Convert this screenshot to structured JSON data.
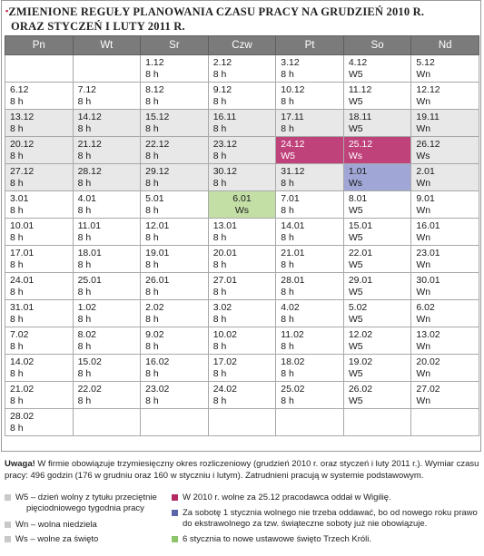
{
  "title": {
    "line1": "ZMIENIONE REGUŁY PLANOWANIA CZASU PRACY NA GRUDZIEŃ 2010 R.",
    "line2": "ORAZ STYCZEŃ I LUTY 2011 R."
  },
  "headers": [
    "Pn",
    "Wt",
    "Sr",
    "Czw",
    "Pt",
    "So",
    "Nd"
  ],
  "rows": [
    {
      "shade": false,
      "cells": [
        null,
        null,
        {
          "d": "1.12",
          "v": "8 h"
        },
        {
          "d": "2.12",
          "v": "8 h"
        },
        {
          "d": "3.12",
          "v": "8 h"
        },
        {
          "d": "4.12",
          "v": "W5"
        },
        {
          "d": "5.12",
          "v": "Wn"
        }
      ]
    },
    {
      "shade": false,
      "cells": [
        {
          "d": "6.12",
          "v": "8 h"
        },
        {
          "d": "7.12",
          "v": "8 h"
        },
        {
          "d": "8.12",
          "v": "8 h"
        },
        {
          "d": "9.12",
          "v": "8 h"
        },
        {
          "d": "10.12",
          "v": "8 h"
        },
        {
          "d": "11.12",
          "v": "W5"
        },
        {
          "d": "12.12",
          "v": "Wn"
        }
      ]
    },
    {
      "shade": true,
      "cells": [
        {
          "d": "13.12",
          "v": "8 h"
        },
        {
          "d": "14.12",
          "v": "8 h"
        },
        {
          "d": "15.12",
          "v": "8 h"
        },
        {
          "d": "16.11",
          "v": "8 h"
        },
        {
          "d": "17.11",
          "v": "8 h"
        },
        {
          "d": "18.11",
          "v": "W5"
        },
        {
          "d": "19.11",
          "v": "Wn"
        }
      ]
    },
    {
      "shade": true,
      "cells": [
        {
          "d": "20.12",
          "v": "8 h"
        },
        {
          "d": "21.12",
          "v": "8 h"
        },
        {
          "d": "22.12",
          "v": "8 h"
        },
        {
          "d": "23.12",
          "v": "8 h"
        },
        {
          "d": "24.12",
          "v": "W5",
          "hl": "pink"
        },
        {
          "d": "25.12",
          "v": "Ws",
          "hl": "pink"
        },
        {
          "d": "26.12",
          "v": "Ws"
        }
      ]
    },
    {
      "shade": true,
      "cells": [
        {
          "d": "27.12",
          "v": "8 h"
        },
        {
          "d": "28.12",
          "v": "8 h"
        },
        {
          "d": "29.12",
          "v": "8 h"
        },
        {
          "d": "30.12",
          "v": "8 h"
        },
        {
          "d": "31.12",
          "v": "8 h"
        },
        {
          "d": "1.01",
          "v": "Ws",
          "hl": "blue"
        },
        {
          "d": "2.01",
          "v": "Wn"
        }
      ]
    },
    {
      "shade": false,
      "cells": [
        {
          "d": "3.01",
          "v": "8 h"
        },
        {
          "d": "4.01",
          "v": "8 h"
        },
        {
          "d": "5.01",
          "v": "8 h"
        },
        {
          "d": "6.01",
          "v": "Ws",
          "hl": "green"
        },
        {
          "d": "7.01",
          "v": "8 h"
        },
        {
          "d": "8.01",
          "v": "W5"
        },
        {
          "d": "9.01",
          "v": "Wn"
        }
      ]
    },
    {
      "shade": false,
      "cells": [
        {
          "d": "10.01",
          "v": "8 h"
        },
        {
          "d": "11.01",
          "v": "8 h"
        },
        {
          "d": "12.01",
          "v": "8 h"
        },
        {
          "d": "13.01",
          "v": "8 h"
        },
        {
          "d": "14.01",
          "v": "8 h"
        },
        {
          "d": "15.01",
          "v": "W5"
        },
        {
          "d": "16.01",
          "v": "Wn"
        }
      ]
    },
    {
      "shade": false,
      "cells": [
        {
          "d": "17.01",
          "v": "8 h"
        },
        {
          "d": "18.01",
          "v": "8 h"
        },
        {
          "d": "19.01",
          "v": "8 h"
        },
        {
          "d": "20.01",
          "v": "8 h"
        },
        {
          "d": "21.01",
          "v": "8 h"
        },
        {
          "d": "22.01",
          "v": "W5"
        },
        {
          "d": "23.01",
          "v": "Wn"
        }
      ]
    },
    {
      "shade": false,
      "cells": [
        {
          "d": "24.01",
          "v": "8 h"
        },
        {
          "d": "25.01",
          "v": "8 h"
        },
        {
          "d": "26.01",
          "v": "8 h"
        },
        {
          "d": "27.01",
          "v": "8 h"
        },
        {
          "d": "28.01",
          "v": "8 h"
        },
        {
          "d": "29.01",
          "v": "W5"
        },
        {
          "d": "30.01",
          "v": "Wn"
        }
      ]
    },
    {
      "shade": false,
      "cells": [
        {
          "d": "31.01",
          "v": "8 h"
        },
        {
          "d": "1.02",
          "v": "8 h"
        },
        {
          "d": "2.02",
          "v": "8 h"
        },
        {
          "d": "3.02",
          "v": "8 h"
        },
        {
          "d": "4.02",
          "v": "8 h"
        },
        {
          "d": "5.02",
          "v": "W5"
        },
        {
          "d": "6.02",
          "v": "Wn"
        }
      ]
    },
    {
      "shade": false,
      "cells": [
        {
          "d": "7.02",
          "v": "8 h"
        },
        {
          "d": "8.02",
          "v": "8 h"
        },
        {
          "d": "9.02",
          "v": "8 h"
        },
        {
          "d": "10.02",
          "v": "8 h"
        },
        {
          "d": "11.02",
          "v": "8 h"
        },
        {
          "d": "12.02",
          "v": "W5"
        },
        {
          "d": "13.02",
          "v": "Wn"
        }
      ]
    },
    {
      "shade": false,
      "cells": [
        {
          "d": "14.02",
          "v": "8 h"
        },
        {
          "d": "15.02",
          "v": "8 h"
        },
        {
          "d": "16.02",
          "v": "8 h"
        },
        {
          "d": "17.02",
          "v": "8 h"
        },
        {
          "d": "18.02",
          "v": "8 h"
        },
        {
          "d": "19.02",
          "v": "W5"
        },
        {
          "d": "20.02",
          "v": "Wn"
        }
      ]
    },
    {
      "shade": false,
      "cells": [
        {
          "d": "21.02",
          "v": "8 h"
        },
        {
          "d": "22.02",
          "v": "8 h"
        },
        {
          "d": "23.02",
          "v": "8 h"
        },
        {
          "d": "24.02",
          "v": "8 h"
        },
        {
          "d": "25.02",
          "v": "8 h"
        },
        {
          "d": "26.02",
          "v": "W5"
        },
        {
          "d": "27.02",
          "v": "Wn"
        }
      ]
    },
    {
      "shade": false,
      "cells": [
        {
          "d": "28.02",
          "v": "8 h"
        },
        null,
        null,
        null,
        null,
        null,
        null
      ]
    }
  ],
  "note": {
    "label": "Uwaga!",
    "text": " W firmie obowiązuje trzymiesięczny okres rozliczeniowy (grudzień 2010 r. oraz styczeń i luty 2011 r.). Wymiar czasu pracy: 496 godzin (176 w grudniu oraz 160 w styczniu i lutym). Zatrudnieni pracują w systemie podstawowym."
  },
  "legend": {
    "w5_line1": "W5 – dzień wolny z tytułu przeciętnie",
    "w5_line2": "pięciodniowego tygodnia pracy",
    "wn": "Wn – wolna niedziela",
    "ws": "Ws – wolne za święto",
    "pink": "W 2010 r. wolne za 25.12 pracodawca oddał w Wigilię.",
    "blue_line1": "Za sobotę 1 stycznia wolnego nie trzeba oddawać, bo od nowego roku prawo",
    "blue_line2": "do ekstrawolnego za tzw. świąteczne soboty już nie obowiązuje.",
    "green": "6 stycznia to nowe ustawowe święto Trzech Króli."
  },
  "colors": {
    "header_bg": "#7b7b7b",
    "shade_bg": "#e8e8e8",
    "pink": "#c0427b",
    "blue": "#a0a7d6",
    "green": "#c3dfa6"
  }
}
